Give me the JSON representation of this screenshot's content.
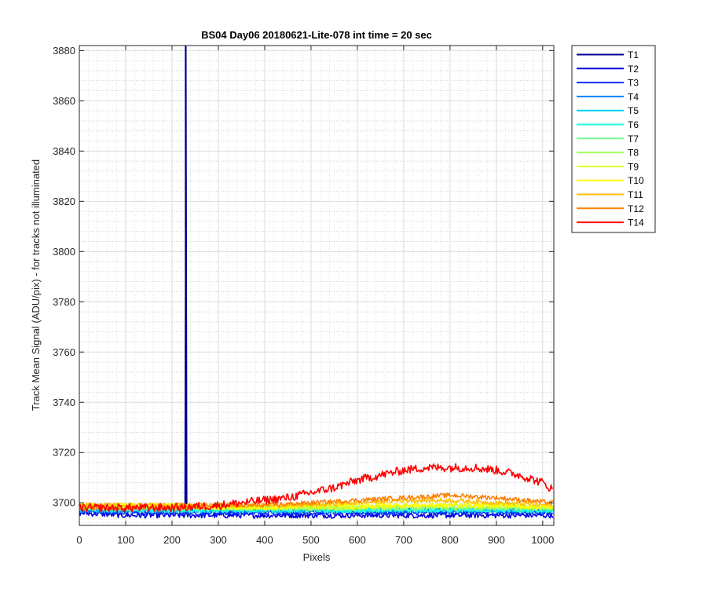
{
  "chart_data": {
    "type": "line",
    "title": "BS04 Day06 20180621-Lite-078 int time = 20 sec",
    "xlabel": "Pixels",
    "ylabel": "Track Mean Signal (ADU/pix) - for tracks not illuminated",
    "xlim": [
      0,
      1024
    ],
    "ylim": [
      3691,
      3882
    ],
    "xticks": [
      0,
      100,
      200,
      300,
      400,
      500,
      600,
      700,
      800,
      900,
      1000
    ],
    "yticks": [
      3700,
      3720,
      3740,
      3760,
      3780,
      3800,
      3820,
      3840,
      3860,
      3880
    ],
    "grid": true,
    "minor_grid": true,
    "legend_position": "outside-top-right",
    "series": [
      {
        "name": "T1",
        "color": "#00008f",
        "x": [
          0,
          100,
          200,
          228,
          229,
          230,
          231,
          300,
          400,
          500,
          600,
          700,
          800,
          900,
          1024
        ],
        "y": [
          3698,
          3697,
          3697,
          3697,
          3882,
          3882,
          3697,
          3697,
          3697,
          3697,
          3697,
          3697,
          3697,
          3697,
          3697
        ]
      },
      {
        "name": "T2",
        "color": "#0000df",
        "x": [
          0,
          100,
          200,
          300,
          400,
          500,
          600,
          700,
          800,
          900,
          1024
        ],
        "y": [
          3696,
          3695,
          3695,
          3695,
          3695,
          3695,
          3695,
          3695,
          3695,
          3695,
          3695
        ]
      },
      {
        "name": "T3",
        "color": "#0030ff",
        "x": [
          0,
          100,
          200,
          300,
          400,
          500,
          600,
          700,
          800,
          900,
          1024
        ],
        "y": [
          3697,
          3696,
          3696,
          3696,
          3696,
          3696,
          3696,
          3696,
          3696,
          3696,
          3696
        ]
      },
      {
        "name": "T4",
        "color": "#0080ff",
        "x": [
          0,
          100,
          200,
          300,
          400,
          500,
          600,
          700,
          800,
          900,
          1024
        ],
        "y": [
          3697,
          3697,
          3697,
          3697,
          3697,
          3697,
          3697,
          3697,
          3697,
          3697,
          3697
        ]
      },
      {
        "name": "T5",
        "color": "#00d0ff",
        "x": [
          0,
          100,
          200,
          300,
          400,
          500,
          600,
          700,
          800,
          900,
          1024
        ],
        "y": [
          3697,
          3697,
          3697,
          3697,
          3697,
          3697,
          3697,
          3697,
          3697,
          3697,
          3697
        ]
      },
      {
        "name": "T6",
        "color": "#20ffdf",
        "x": [
          0,
          100,
          200,
          300,
          400,
          500,
          600,
          700,
          800,
          900,
          1024
        ],
        "y": [
          3698,
          3697,
          3697,
          3697,
          3697,
          3697,
          3697,
          3697,
          3697,
          3697,
          3697
        ]
      },
      {
        "name": "T7",
        "color": "#70ff8f",
        "x": [
          0,
          100,
          200,
          300,
          400,
          500,
          600,
          700,
          800,
          900,
          1024
        ],
        "y": [
          3698,
          3698,
          3698,
          3698,
          3698,
          3698,
          3698,
          3698,
          3698,
          3698,
          3698
        ]
      },
      {
        "name": "T8",
        "color": "#9fff60",
        "x": [
          0,
          100,
          200,
          300,
          400,
          500,
          600,
          700,
          800,
          900,
          1024
        ],
        "y": [
          3698,
          3698,
          3698,
          3698,
          3698,
          3698,
          3698,
          3698,
          3698,
          3698,
          3698
        ]
      },
      {
        "name": "T9",
        "color": "#dfff20",
        "x": [
          0,
          100,
          200,
          300,
          400,
          500,
          600,
          700,
          800,
          900,
          1024
        ],
        "y": [
          3699,
          3699,
          3699,
          3698,
          3698,
          3698,
          3698,
          3699,
          3699,
          3699,
          3698
        ]
      },
      {
        "name": "T10",
        "color": "#ffff00",
        "x": [
          0,
          100,
          200,
          300,
          400,
          500,
          600,
          700,
          800,
          900,
          1024
        ],
        "y": [
          3699,
          3699,
          3699,
          3698,
          3698,
          3699,
          3699,
          3699,
          3699,
          3699,
          3698
        ]
      },
      {
        "name": "T11",
        "color": "#ffbf00",
        "x": [
          0,
          100,
          200,
          300,
          400,
          500,
          600,
          700,
          800,
          900,
          1024
        ],
        "y": [
          3699,
          3699,
          3699,
          3699,
          3699,
          3699,
          3700,
          3701,
          3701,
          3700,
          3699
        ]
      },
      {
        "name": "T12",
        "color": "#ff8000",
        "x": [
          0,
          100,
          200,
          300,
          400,
          500,
          600,
          700,
          800,
          900,
          1024
        ],
        "y": [
          3698,
          3698,
          3698,
          3699,
          3699,
          3700,
          3701,
          3702,
          3703,
          3702,
          3700
        ]
      },
      {
        "name": "T14",
        "color": "#ff0000",
        "x": [
          0,
          50,
          100,
          200,
          300,
          350,
          400,
          450,
          500,
          550,
          600,
          650,
          700,
          750,
          800,
          850,
          900,
          950,
          1000,
          1024
        ],
        "y": [
          3698,
          3698,
          3698,
          3698,
          3699,
          3700,
          3701,
          3702,
          3704,
          3706,
          3709,
          3711,
          3713,
          3714,
          3714,
          3714,
          3713,
          3711,
          3708,
          3705
        ]
      }
    ]
  }
}
